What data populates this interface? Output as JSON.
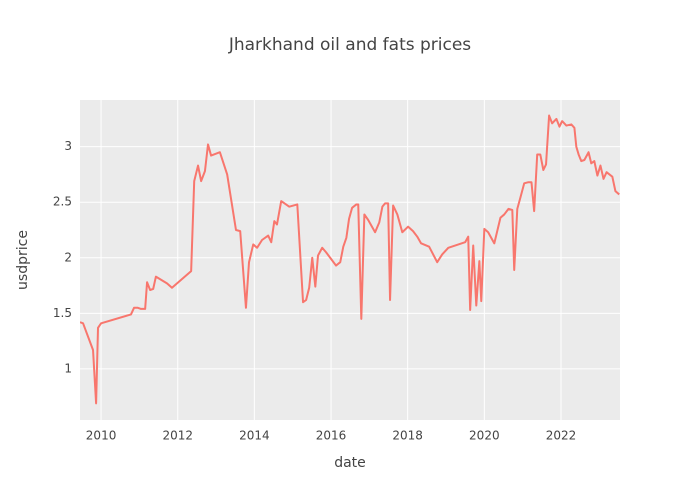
{
  "chart_data": {
    "type": "line",
    "title": "Jharkhand oil and fats prices",
    "x_label": "date",
    "y_label": "usdprice",
    "x": [
      2009.45,
      2009.53,
      2009.79,
      2009.87,
      2009.92,
      2010.0,
      2010.78,
      2010.86,
      2010.96,
      2011.04,
      2011.15,
      2011.2,
      2011.28,
      2011.36,
      2011.43,
      2011.72,
      2011.85,
      2012.35,
      2012.43,
      2012.53,
      2012.61,
      2012.71,
      2012.79,
      2012.87,
      2013.1,
      2013.29,
      2013.52,
      2013.63,
      2013.78,
      2013.86,
      2013.97,
      2014.07,
      2014.2,
      2014.36,
      2014.44,
      2014.52,
      2014.59,
      2014.7,
      2014.91,
      2015.12,
      2015.27,
      2015.35,
      2015.43,
      2015.51,
      2015.59,
      2015.66,
      2015.77,
      2015.87,
      2016.0,
      2016.13,
      2016.24,
      2016.32,
      2016.4,
      2016.47,
      2016.55,
      2016.66,
      2016.71,
      2016.79,
      2016.87,
      2016.97,
      2017.15,
      2017.26,
      2017.34,
      2017.41,
      2017.49,
      2017.54,
      2017.62,
      2017.73,
      2017.86,
      2018.01,
      2018.14,
      2018.25,
      2018.35,
      2018.56,
      2018.77,
      2018.9,
      2019.06,
      2019.5,
      2019.58,
      2019.63,
      2019.71,
      2019.79,
      2019.87,
      2019.92,
      2020.0,
      2020.1,
      2020.26,
      2020.42,
      2020.52,
      2020.63,
      2020.73,
      2020.78,
      2020.86,
      2020.94,
      2021.04,
      2021.15,
      2021.23,
      2021.3,
      2021.38,
      2021.46,
      2021.54,
      2021.61,
      2021.69,
      2021.77,
      2021.88,
      2021.96,
      2022.03,
      2022.14,
      2022.27,
      2022.35,
      2022.4,
      2022.46,
      2022.53,
      2022.61,
      2022.72,
      2022.79,
      2022.87,
      2022.95,
      2023.03,
      2023.11,
      2023.19,
      2023.34,
      2023.42,
      2023.52
    ],
    "series": [
      {
        "name": "usdprice",
        "color": "#f8766d",
        "values": [
          1.42,
          1.41,
          1.17,
          0.69,
          1.37,
          1.41,
          1.49,
          1.55,
          1.55,
          1.54,
          1.54,
          1.78,
          1.71,
          1.72,
          1.83,
          1.77,
          1.73,
          1.88,
          2.69,
          2.83,
          2.69,
          2.78,
          3.02,
          2.92,
          2.95,
          2.75,
          2.25,
          2.24,
          1.55,
          1.96,
          2.12,
          2.09,
          2.16,
          2.2,
          2.14,
          2.33,
          2.3,
          2.51,
          2.46,
          2.48,
          1.6,
          1.62,
          1.73,
          2.0,
          1.74,
          2.02,
          2.09,
          2.05,
          1.99,
          1.93,
          1.96,
          2.1,
          2.18,
          2.35,
          2.45,
          2.48,
          2.48,
          1.45,
          2.39,
          2.34,
          2.23,
          2.32,
          2.46,
          2.49,
          2.49,
          1.62,
          2.47,
          2.39,
          2.23,
          2.28,
          2.24,
          2.19,
          2.13,
          2.1,
          1.96,
          2.03,
          2.09,
          2.14,
          2.19,
          1.53,
          2.11,
          1.57,
          1.97,
          1.61,
          2.26,
          2.23,
          2.13,
          2.36,
          2.39,
          2.44,
          2.43,
          1.89,
          2.44,
          2.54,
          2.67,
          2.68,
          2.68,
          2.42,
          2.93,
          2.93,
          2.79,
          2.84,
          3.28,
          3.21,
          3.25,
          3.18,
          3.23,
          3.19,
          3.2,
          3.17,
          3.0,
          2.93,
          2.87,
          2.88,
          2.95,
          2.85,
          2.87,
          2.74,
          2.83,
          2.71,
          2.77,
          2.73,
          2.6,
          2.57
        ]
      }
    ],
    "xlim": [
      2009.45,
      2023.54
    ],
    "xticks": [
      2010,
      2012,
      2014,
      2016,
      2018,
      2020,
      2022
    ],
    "ylim": [
      0.54,
      3.42
    ],
    "yticks": [
      1,
      1.5,
      2,
      2.5,
      3
    ],
    "grid": true,
    "background": "#ebebeb"
  }
}
